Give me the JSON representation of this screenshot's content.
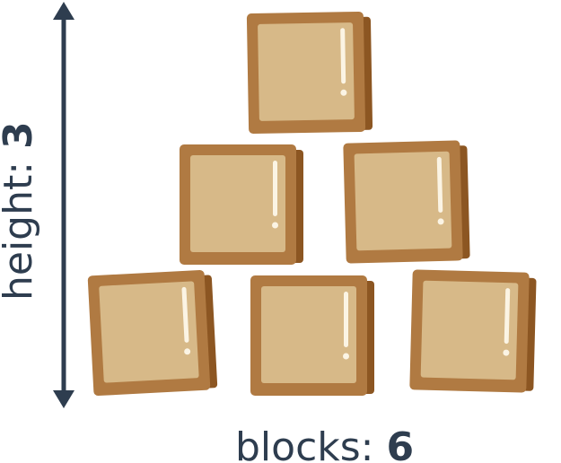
{
  "height_label": {
    "prefix": "height: ",
    "value": "3"
  },
  "blocks_label": {
    "prefix": "blocks: ",
    "value": "6"
  },
  "colors": {
    "ink": "#2e3d4f",
    "block_outer": "#b07a42",
    "block_side": "#8c5622",
    "block_face": "#d7b988",
    "block_highlight": "#fbf4e4"
  }
}
